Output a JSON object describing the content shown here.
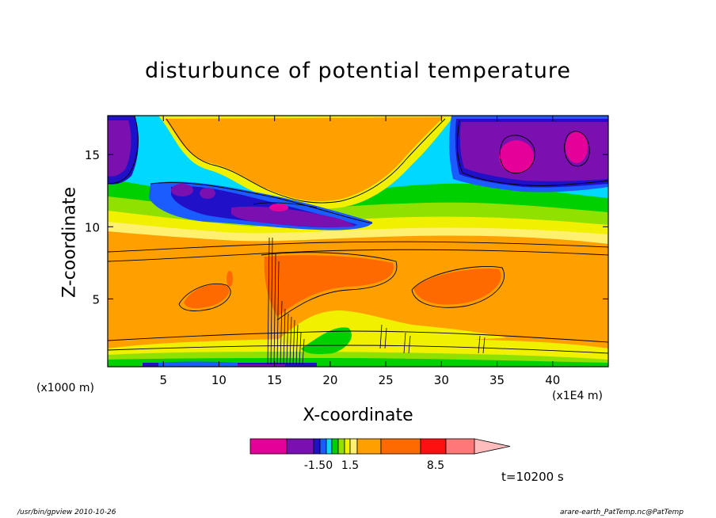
{
  "title": "disturbunce of potential temperature",
  "footer": {
    "left": "/usr/bin/gpview   2010-10-26",
    "right": "arare-earth_PatTemp.nc@PatTemp"
  },
  "chart_data": {
    "type": "heatmap",
    "title": "disturbunce of potential temperature",
    "xlabel": "X-coordinate",
    "ylabel": "Z-coordinate",
    "x_unit": "(x1E4 m)",
    "y_unit": "(x1000 m)",
    "xlim": [
      0,
      45
    ],
    "ylim": [
      0.3,
      17.7
    ],
    "x_ticks": [
      5,
      10,
      15,
      20,
      25,
      30,
      35,
      40
    ],
    "y_ticks": [
      5,
      10,
      15
    ],
    "annotation": "t=10200 s",
    "colorbar": {
      "colors": [
        "#e6009a",
        "#7a10b0",
        "#2010c8",
        "#1a5cff",
        "#00d8ff",
        "#00d000",
        "#90e000",
        "#f0f000",
        "#fff070",
        "#ffa000",
        "#ff6a00",
        "#ff1010",
        "#ff7878",
        "#ffbcbc"
      ],
      "tick_labels": [
        "-1.50",
        "1.5",
        "8.5"
      ]
    }
  }
}
